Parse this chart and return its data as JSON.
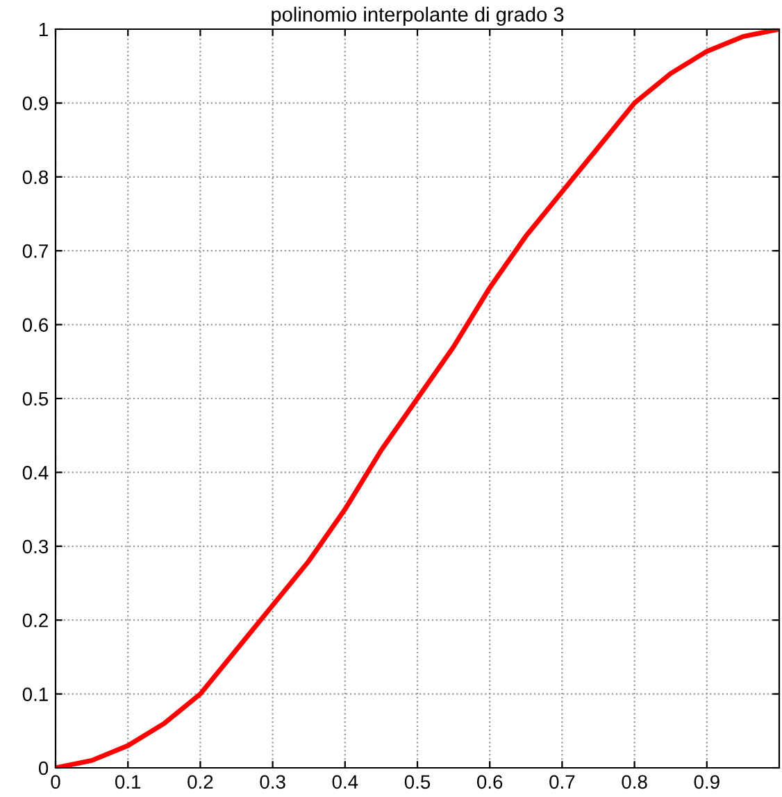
{
  "chart_data": {
    "type": "line",
    "title": "polinomio interpolante di grado 3",
    "series": [
      {
        "color": "#ff0000",
        "x": [
          0,
          0.05,
          0.1,
          0.15,
          0.2,
          0.25,
          0.3,
          0.35,
          0.4,
          0.45,
          0.5,
          0.55,
          0.6,
          0.65,
          0.7,
          0.75,
          0.8,
          0.85,
          0.9,
          0.95,
          1
        ],
        "values": [
          0,
          0.01,
          0.03,
          0.06,
          0.1,
          0.16,
          0.22,
          0.28,
          0.35,
          0.43,
          0.5,
          0.57,
          0.65,
          0.72,
          0.78,
          0.84,
          0.9,
          0.94,
          0.97,
          0.99,
          1
        ]
      }
    ],
    "xlim": [
      0,
      1
    ],
    "ylim": [
      0,
      1
    ],
    "xticks": [
      0,
      0.1,
      0.2,
      0.3,
      0.4,
      0.5,
      0.6,
      0.7,
      0.8,
      0.9
    ],
    "yticks": [
      0,
      0.1,
      0.2,
      0.3,
      0.4,
      0.5,
      0.6,
      0.7,
      0.8,
      0.9,
      1
    ],
    "grid": true,
    "line_style": "solid",
    "marker": "none"
  }
}
